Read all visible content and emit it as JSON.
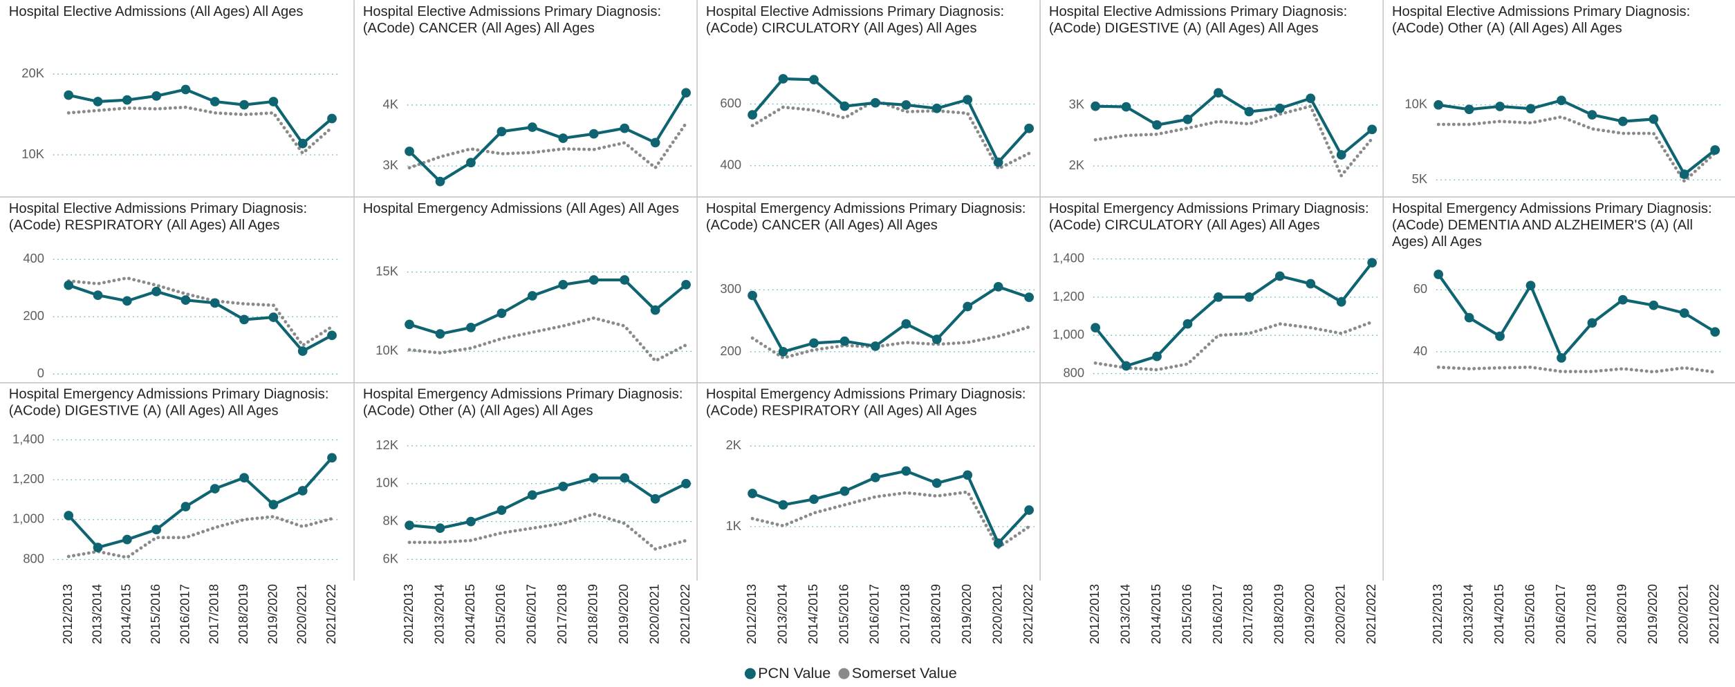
{
  "categories": [
    "2012/2013",
    "2013/2014",
    "2014/2015",
    "2015/2016",
    "2016/2017",
    "2017/2018",
    "2018/2019",
    "2019/2020",
    "2020/2021",
    "2021/2022"
  ],
  "legend": [
    {
      "name": "PCN Value",
      "color": "#0e6471"
    },
    {
      "name": "Somerset Value",
      "color": "#8a8a8a",
      "dotted": true
    }
  ],
  "chart_data": [
    {
      "type": "line",
      "title": [
        "Hospital Elective Admissions (All Ages) All Ages"
      ],
      "ylim": [
        5600,
        22600
      ],
      "yticks": [
        {
          "value": 10000,
          "label": "10K"
        },
        {
          "value": 20000,
          "label": "20K"
        }
      ],
      "series": [
        {
          "values": [
            17400,
            16600,
            16800,
            17300,
            18100,
            16600,
            16200,
            16600,
            11400,
            14500
          ]
        },
        {
          "values": [
            15200,
            15500,
            15800,
            15700,
            15900,
            15200,
            15000,
            15200,
            10200,
            13400
          ]
        }
      ]
    },
    {
      "type": "line",
      "title": [
        "Hospital Elective Admissions Primary Diagnosis:",
        "(ACode) CANCER (All Ages) All Ages"
      ],
      "ylim": [
        2600,
        4850
      ],
      "yticks": [
        {
          "value": 3000,
          "label": "3K"
        },
        {
          "value": 4000,
          "label": "4K"
        }
      ],
      "series": [
        {
          "values": [
            3240,
            2745,
            3055,
            3564,
            3636,
            3455,
            3527,
            3618,
            3382,
            4200
          ]
        },
        {
          "values": [
            2970,
            3150,
            3280,
            3200,
            3220,
            3280,
            3270,
            3380,
            2970,
            3700
          ]
        }
      ]
    },
    {
      "type": "line",
      "title": [
        "Hospital Elective Admissions Primary Diagnosis:",
        "(ACode) CIRCULATORY (All Ages) All Ages"
      ],
      "ylim": [
        320,
        765
      ],
      "yticks": [
        400,
        600
      ],
      "series": [
        {
          "values": [
            565,
            682,
            679,
            593,
            604,
            597,
            586,
            614,
            411,
            521
          ]
        },
        {
          "values": [
            530,
            590,
            580,
            555,
            612,
            575,
            578,
            570,
            390,
            440
          ]
        }
      ]
    },
    {
      "type": "line",
      "title": [
        "Hospital Elective Admissions Primary Diagnosis:",
        "(ACode) DIGESTIVE (A) (All Ages) All Ages"
      ],
      "ylim": [
        1600,
        3850
      ],
      "yticks": [
        {
          "value": 2000,
          "label": "2K"
        },
        {
          "value": 3000,
          "label": "3K"
        }
      ],
      "series": [
        {
          "values": [
            2980,
            2970,
            2673,
            2764,
            3200,
            2891,
            2945,
            3109,
            2182,
            2600
          ]
        },
        {
          "values": [
            2430,
            2500,
            2520,
            2620,
            2730,
            2690,
            2850,
            2980,
            1840,
            2450
          ]
        }
      ]
    },
    {
      "type": "line",
      "title": [
        "Hospital Elective Admissions Primary Diagnosis:",
        "(ACode) Other (A) (All Ages) All Ages"
      ],
      "ylim": [
        4300,
        13450
      ],
      "yticks": [
        {
          "value": 5000,
          "label": "5K"
        },
        {
          "value": 10000,
          "label": "10K"
        }
      ],
      "series": [
        {
          "values": [
            10000,
            9700,
            9900,
            9750,
            10300,
            9340,
            8900,
            9050,
            5370,
            6990
          ]
        },
        {
          "values": [
            8700,
            8700,
            8900,
            8800,
            9200,
            8400,
            8100,
            8100,
            4900,
            6800
          ]
        }
      ]
    },
    {
      "type": "line",
      "title": [
        "Hospital Elective Admissions Primary Diagnosis:",
        "(ACode) RESPIRATORY (All Ages) All Ages"
      ],
      "ylim": [
        -15,
        475
      ],
      "yticks": [
        0,
        200,
        400
      ],
      "series": [
        {
          "values": [
            310,
            275,
            255,
            288,
            258,
            248,
            190,
            198,
            80,
            135
          ]
        },
        {
          "values": [
            325,
            315,
            335,
            310,
            280,
            255,
            245,
            240,
            100,
            165
          ]
        }
      ]
    },
    {
      "type": "line",
      "title": [
        "Hospital Emergency Admissions (All Ages) All Ages"
      ],
      "ylim": [
        8300,
        17150
      ],
      "yticks": [
        {
          "value": 10000,
          "label": "10K"
        },
        {
          "value": 15000,
          "label": "15K"
        }
      ],
      "series": [
        {
          "values": [
            11700,
            11100,
            11500,
            12400,
            13500,
            14200,
            14500,
            14500,
            12600,
            14200
          ]
        },
        {
          "values": [
            10100,
            9900,
            10200,
            10800,
            11200,
            11600,
            12100,
            11600,
            9400,
            10400
          ]
        }
      ]
    },
    {
      "type": "line",
      "title": [
        "Hospital Emergency Admissions Primary Diagnosis:",
        "(ACode) CANCER (All Ages) All Ages"
      ],
      "ylim": [
        157,
        384
      ],
      "yticks": [
        200,
        300
      ],
      "series": [
        {
          "values": [
            291,
            200,
            214,
            217,
            209,
            245,
            220,
            273,
            305,
            288
          ]
        },
        {
          "values": [
            222,
            190,
            203,
            210,
            208,
            215,
            212,
            215,
            225,
            240
          ]
        }
      ]
    },
    {
      "type": "line",
      "title": [
        "Hospital Emergency Admissions Primary Diagnosis:",
        "(ACode) CIRCULATORY (All Ages) All Ages"
      ],
      "ylim": [
        775,
        1510
      ],
      "yticks": [
        {
          "value": 800,
          "label": "800"
        },
        {
          "value": 1000,
          "label": "1,000"
        },
        {
          "value": 1200,
          "label": "1,200"
        },
        {
          "value": 1400,
          "label": "1,400"
        }
      ],
      "series": [
        {
          "values": [
            1040,
            840,
            890,
            1060,
            1200,
            1200,
            1310,
            1270,
            1175,
            1380
          ]
        },
        {
          "values": [
            855,
            830,
            820,
            850,
            1000,
            1010,
            1060,
            1040,
            1010,
            1070
          ]
        }
      ]
    },
    {
      "type": "line",
      "title": [
        "Hospital Emergency Admissions Primary Diagnosis:",
        "(ACode) DEMENTIA AND ALZHEIMER'S (A) (All",
        "Ages) All Ages"
      ],
      "ylim": [
        31.4,
        76.8
      ],
      "yticks": [
        40,
        60
      ],
      "series": [
        {
          "values": [
            65,
            51,
            45,
            61.4,
            38,
            49.3,
            56.8,
            55,
            52.5,
            46.4
          ]
        },
        {
          "values": [
            35,
            34.5,
            34.8,
            35,
            33.6,
            33.6,
            34.5,
            33.5,
            34.8,
            33.4
          ]
        }
      ]
    },
    {
      "type": "line",
      "title": [
        "Hospital Emergency Admissions Primary Diagnosis:",
        "(ACode) DIGESTIVE (A) (All Ages) All Ages"
      ],
      "ylim": [
        710,
        1470
      ],
      "yticks": [
        {
          "value": 800,
          "label": "800"
        },
        {
          "value": 1000,
          "label": "1,000"
        },
        {
          "value": 1200,
          "label": "1,200"
        },
        {
          "value": 1400,
          "label": "1,400"
        }
      ],
      "series": [
        {
          "values": [
            1020,
            860,
            900,
            950,
            1065,
            1155,
            1210,
            1075,
            1145,
            1310
          ]
        },
        {
          "values": [
            815,
            840,
            810,
            910,
            910,
            960,
            1000,
            1015,
            965,
            1005
          ]
        }
      ]
    },
    {
      "type": "line",
      "title": [
        "Hospital Emergency Admissions Primary Diagnosis:",
        "(ACode) Other (A) (All Ages) All Ages"
      ],
      "ylim": [
        5050,
        13050
      ],
      "yticks": [
        {
          "value": 6000,
          "label": "6K"
        },
        {
          "value": 8000,
          "label": "8K"
        },
        {
          "value": 10000,
          "label": "10K"
        },
        {
          "value": 12000,
          "label": "12K"
        }
      ],
      "series": [
        {
          "values": [
            7800,
            7650,
            8000,
            8600,
            9400,
            9850,
            10300,
            10300,
            9200,
            10000
          ]
        },
        {
          "values": [
            6900,
            6900,
            7000,
            7400,
            7650,
            7900,
            8400,
            7900,
            6550,
            7000
          ]
        }
      ]
    },
    {
      "type": "line",
      "title": [
        "Hospital Emergency Admissions Primary Diagnosis:",
        "(ACode) RESPIRATORY (All Ages) All Ages"
      ],
      "ylim": [
        370,
        2250
      ],
      "yticks": [
        {
          "value": 1000,
          "label": "1K"
        },
        {
          "value": 2000,
          "label": "2K"
        }
      ],
      "series": [
        {
          "values": [
            1411,
            1270,
            1340,
            1440,
            1610,
            1690,
            1540,
            1640,
            795,
            1205
          ]
        },
        {
          "values": [
            1100,
            1010,
            1170,
            1270,
            1370,
            1420,
            1380,
            1430,
            740,
            1000
          ]
        }
      ]
    }
  ]
}
